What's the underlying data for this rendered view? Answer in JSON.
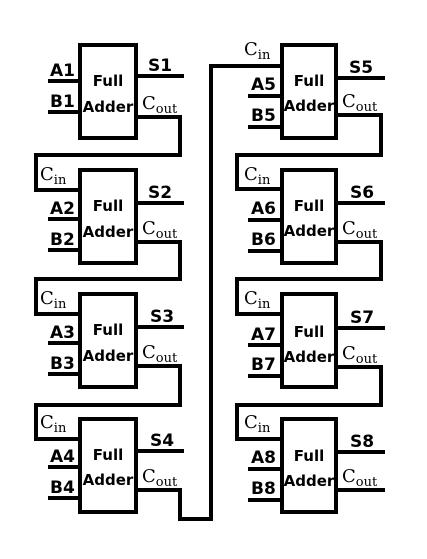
{
  "adders": [
    {
      "a": "A1",
      "b": "B1",
      "s": "S1",
      "box_top": "Full",
      "box_bottom": "Adder",
      "cout": "C",
      "cout_sub": "out"
    },
    {
      "cin": "C",
      "cin_sub": "in",
      "a": "A2",
      "b": "B2",
      "s": "S2",
      "box_top": "Full",
      "box_bottom": "Adder",
      "cout": "C",
      "cout_sub": "out"
    },
    {
      "cin": "C",
      "cin_sub": "in",
      "a": "A3",
      "b": "B3",
      "s": "S3",
      "box_top": "Full",
      "box_bottom": "Adder",
      "cout": "C",
      "cout_sub": "out"
    },
    {
      "cin": "C",
      "cin_sub": "in",
      "a": "A4",
      "b": "B4",
      "s": "S4",
      "box_top": "Full",
      "box_bottom": "Adder",
      "cout": "C",
      "cout_sub": "out"
    },
    {
      "cin": "C",
      "cin_sub": "in",
      "a": "A5",
      "b": "B5",
      "s": "S5",
      "box_top": "Full",
      "box_bottom": "Adder",
      "cout": "C",
      "cout_sub": "out"
    },
    {
      "cin": "C",
      "cin_sub": "in",
      "a": "A6",
      "b": "B6",
      "s": "S6",
      "box_top": "Full",
      "box_bottom": "Adder",
      "cout": "C",
      "cout_sub": "out"
    },
    {
      "cin": "C",
      "cin_sub": "in",
      "a": "A7",
      "b": "B7",
      "s": "S7",
      "box_top": "Full",
      "box_bottom": "Adder",
      "cout": "C",
      "cout_sub": "out"
    },
    {
      "cin": "C",
      "cin_sub": "in",
      "a": "A8",
      "b": "B8",
      "s": "S8",
      "box_top": "Full",
      "box_bottom": "Adder",
      "cout": "C",
      "cout_sub": "out"
    }
  ]
}
